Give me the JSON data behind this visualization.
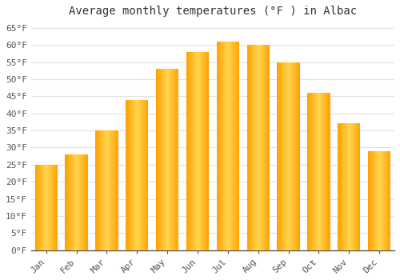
{
  "title": "Average monthly temperatures (°F ) in Albac",
  "months": [
    "Jan",
    "Feb",
    "Mar",
    "Apr",
    "May",
    "Jun",
    "Jul",
    "Aug",
    "Sep",
    "Oct",
    "Nov",
    "Dec"
  ],
  "values": [
    25,
    28,
    35,
    44,
    53,
    58,
    61,
    60,
    55,
    46,
    37,
    29
  ],
  "bar_color_center": "#FFD54F",
  "bar_color_edge": "#FFA000",
  "ylim": [
    0,
    67
  ],
  "yticks": [
    0,
    5,
    10,
    15,
    20,
    25,
    30,
    35,
    40,
    45,
    50,
    55,
    60,
    65
  ],
  "ytick_labels": [
    "0°F",
    "5°F",
    "10°F",
    "15°F",
    "20°F",
    "25°F",
    "30°F",
    "35°F",
    "40°F",
    "45°F",
    "50°F",
    "55°F",
    "60°F",
    "65°F"
  ],
  "background_color": "#ffffff",
  "grid_color": "#e0e0e0",
  "title_fontsize": 10,
  "tick_fontsize": 8
}
